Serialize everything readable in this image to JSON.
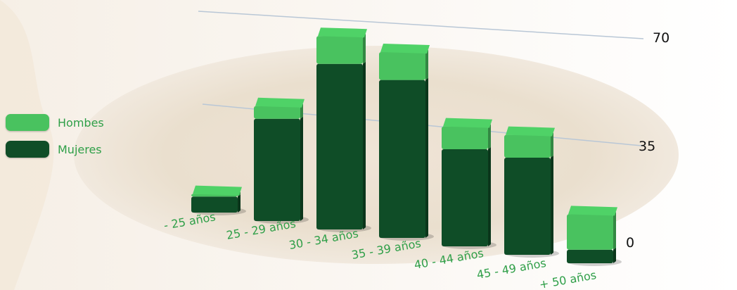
{
  "colors": {
    "hombres": "#49c25f",
    "mujeres": "#0f4d27",
    "label_green": "#2f9f48",
    "background_tan": "#e8dccf",
    "grid": "#b9c7d6"
  },
  "legend": [
    {
      "label": "Hombes",
      "color": "#49c25f"
    },
    {
      "label": "Mujeres",
      "color": "#0f4d27"
    }
  ],
  "chart_data": {
    "type": "bar",
    "stacked": true,
    "three_d": true,
    "categories": [
      "- 25 años",
      "25 - 29 años",
      "30 -  34 años",
      "35 - 39 años",
      "40 - 44 años",
      "45 - 49 años",
      "+ 50 años"
    ],
    "series": [
      {
        "name": "Mujeres",
        "values": [
          3,
          37,
          62,
          59,
          35,
          35,
          2
        ]
      },
      {
        "name": "Hombes",
        "values": [
          1,
          5,
          11,
          11,
          9,
          9,
          14
        ]
      }
    ],
    "ylim": [
      0,
      70
    ],
    "yticks": [
      0,
      35,
      70
    ],
    "grid": true,
    "legend_position": "left"
  }
}
